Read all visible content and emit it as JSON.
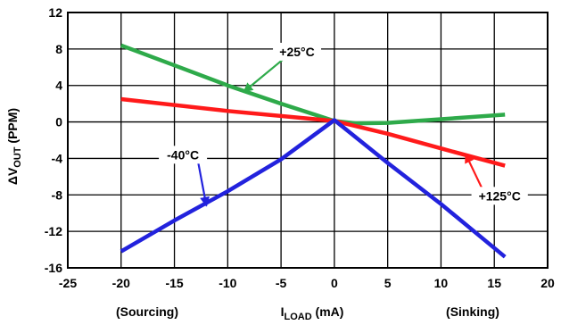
{
  "chart_data": {
    "type": "line",
    "xlabel": "I",
    "xlabel_sub": "LOAD",
    "xlabel_unit": " (mA)",
    "ylabel": "ΔV",
    "ylabel_sub": "OUT",
    "ylabel_unit": " (PPM)",
    "xlim": [
      -25,
      20
    ],
    "ylim": [
      -16,
      12
    ],
    "x_ticks": [
      -25,
      -20,
      -15,
      -10,
      -5,
      0,
      5,
      10,
      15,
      20
    ],
    "y_ticks": [
      12,
      8,
      4,
      0,
      -4,
      -8,
      -12,
      -16
    ],
    "x_tick_labels": [
      "-25",
      "-20",
      "-15",
      "-10",
      "-5",
      "0",
      "5",
      "10",
      "15",
      "20"
    ],
    "y_tick_labels": [
      "12",
      "8",
      "4",
      "0",
      "-4",
      "-8",
      "-12",
      "-16"
    ],
    "grid": true,
    "region_labels": {
      "left": "(Sourcing)",
      "right": "(Sinking)"
    },
    "series": [
      {
        "name": "+25°C",
        "color": "#2eaa4a",
        "x": [
          -20,
          -15,
          -10,
          -5,
          0,
          2,
          5,
          10,
          16
        ],
        "y": [
          8.4,
          6.2,
          4.0,
          2.0,
          0.1,
          -0.15,
          -0.1,
          0.3,
          0.8
        ]
      },
      {
        "name": "+125°C",
        "color": "#ff1a1a",
        "x": [
          -20,
          -10,
          0,
          5,
          10,
          16
        ],
        "y": [
          2.5,
          1.2,
          0.1,
          -1.3,
          -2.9,
          -4.8
        ]
      },
      {
        "name": "-40°C",
        "color": "#2222dd",
        "x": [
          -20,
          -15,
          -10,
          -5,
          0,
          5,
          10,
          16
        ],
        "y": [
          -14.2,
          -10.8,
          -7.6,
          -4.1,
          0.2,
          -4.5,
          -9.0,
          -14.8
        ]
      }
    ],
    "annotations": [
      {
        "text": "+25°C",
        "series": 0,
        "target": [
          -8.5,
          3.3
        ],
        "label_at": [
          -3.5,
          7.7
        ]
      },
      {
        "text": "+125°C",
        "series": 1,
        "target": [
          12.3,
          -3.5
        ],
        "label_at": [
          15.5,
          -8.1
        ]
      },
      {
        "text": "-40°C",
        "series": 2,
        "target": [
          -12,
          -9.2
        ],
        "label_at": [
          -14.2,
          -3.6
        ]
      }
    ]
  }
}
